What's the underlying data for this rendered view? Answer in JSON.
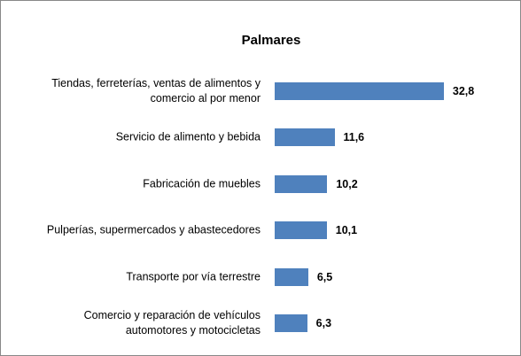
{
  "chart_data": {
    "type": "bar",
    "orientation": "horizontal",
    "title": "Palmares",
    "categories": [
      "Tiendas, ferreterías, ventas de alimentos y comercio al por menor",
      "Servicio de alimento y bebida",
      "Fabricación de muebles",
      "Pulperías, supermercados y abastecedores",
      "Transporte por vía terrestre",
      "Comercio y reparación de vehículos automotores y motocicletas"
    ],
    "values": [
      32.8,
      11.6,
      10.2,
      10.1,
      6.5,
      6.3
    ],
    "value_labels": [
      "32,8",
      "11,6",
      "10,2",
      "10,1",
      "6,5",
      "6,3"
    ],
    "color": "#4f81bd"
  }
}
